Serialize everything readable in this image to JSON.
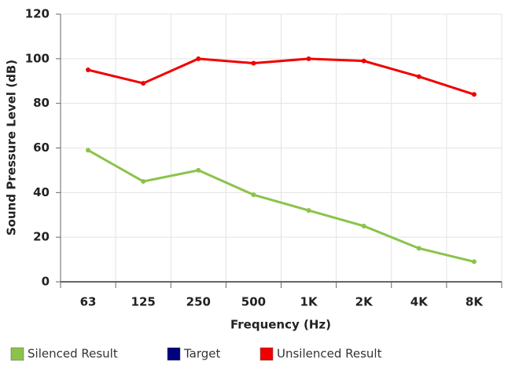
{
  "chart_data": {
    "type": "line",
    "x_label": "Frequency (Hz)",
    "y_label": "Sound Pressure Level (dB)",
    "categories": [
      "63",
      "125",
      "250",
      "500",
      "1K",
      "2K",
      "4K",
      "8K"
    ],
    "series": [
      {
        "name": "Silenced Result",
        "color": "#8bc34a",
        "values": [
          59,
          45,
          50,
          39,
          32,
          25,
          15,
          9
        ]
      },
      {
        "name": "Target",
        "color": "#000080",
        "values": [
          null,
          null,
          null,
          null,
          null,
          null,
          null,
          null
        ]
      },
      {
        "name": "Unsilenced Result",
        "color": "#f00000",
        "values": [
          95,
          89,
          100,
          98,
          100,
          99,
          92,
          84
        ]
      }
    ],
    "ylim": [
      0,
      120
    ],
    "yticks": [
      0,
      20,
      40,
      60,
      80,
      100,
      120
    ],
    "grid": true,
    "legend": "bottom"
  }
}
